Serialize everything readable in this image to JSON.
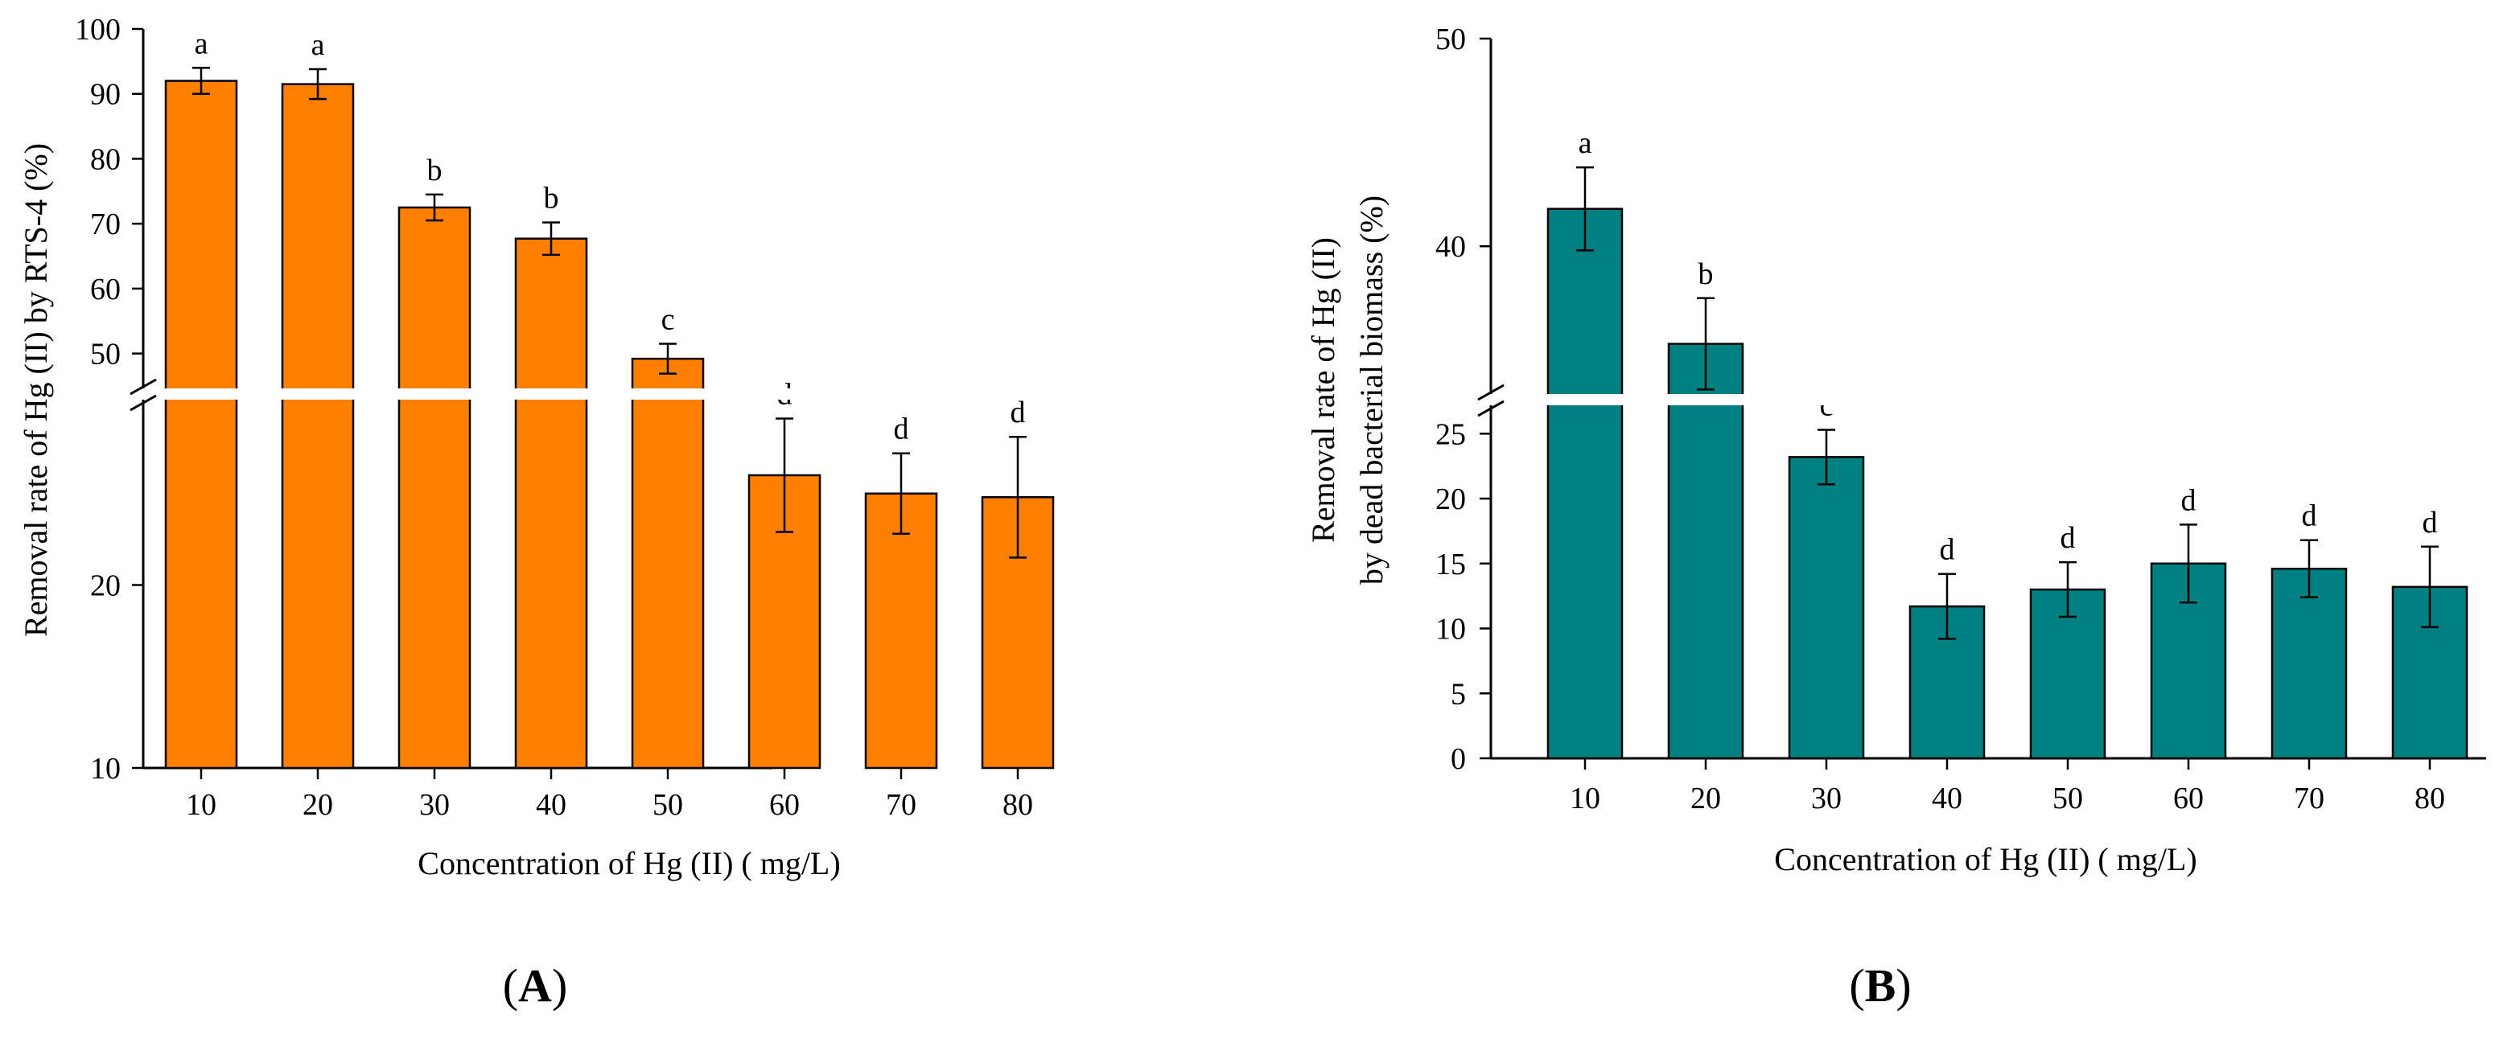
{
  "chart_data": [
    {
      "type": "bar",
      "panel_label": "A",
      "xlabel": "Concentration of  Hg (II) ( mg/L)",
      "ylabel": "Removal rate of Hg (II) by  RTS-4 (%)",
      "categories": [
        "10",
        "20",
        "30",
        "40",
        "50",
        "60",
        "70",
        "80"
      ],
      "values": [
        92,
        91.5,
        72.5,
        67.7,
        49.2,
        26,
        25,
        24.8
      ],
      "errors": [
        2,
        2.3,
        2,
        2.5,
        2.3,
        3.1,
        2.2,
        3.3
      ],
      "letters": [
        "a",
        "a",
        "b",
        "b",
        "c",
        "d",
        "d",
        "d"
      ],
      "bar_color": "#FF8000",
      "axis_break": true,
      "ylim_lower": [
        10,
        30
      ],
      "ylim_upper": [
        45,
        100
      ],
      "yticks_lower": [
        "10",
        "20"
      ],
      "yticks_upper": [
        "50",
        "60",
        "70",
        "80",
        "90",
        "100"
      ],
      "grid": false
    },
    {
      "type": "bar",
      "panel_label": "B",
      "xlabel": "Concentration of  Hg (II) ( mg/L)",
      "ylabel_line1": "Removal rate of Hg (II)",
      "ylabel_line2": "by dead bacterial biomass  (%)",
      "categories": [
        "10",
        "20",
        "30",
        "40",
        "50",
        "60",
        "70",
        "80"
      ],
      "values": [
        41.8,
        35.3,
        23.2,
        11.7,
        13,
        15,
        14.6,
        13.2
      ],
      "errors": [
        2,
        2.2,
        2.1,
        2.5,
        2.1,
        3,
        2.2,
        3.1
      ],
      "letters": [
        "a",
        "b",
        "c",
        "d",
        "d",
        "d",
        "d",
        "d"
      ],
      "bar_color": "#008080",
      "axis_break": true,
      "ylim_lower": [
        0,
        27
      ],
      "ylim_upper": [
        33,
        50
      ],
      "yticks_lower": [
        "0",
        "5",
        "10",
        "15",
        "20",
        "25"
      ],
      "yticks_upper": [
        "40",
        "50"
      ],
      "grid": false
    }
  ]
}
